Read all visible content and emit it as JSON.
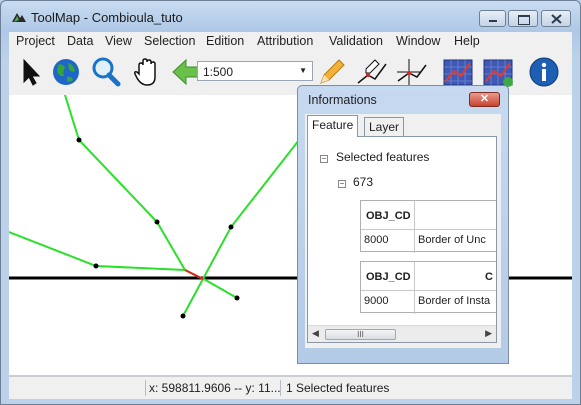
{
  "window": {
    "title": "ToolMap - Combioula_tuto",
    "controls": {
      "minimize": "–",
      "maximize": "□",
      "close": "✕"
    }
  },
  "menubar": [
    "Project",
    "Data",
    "View",
    "Selection",
    "Edition",
    "Attribution",
    "Validation",
    "Window",
    "Help"
  ],
  "toolbar": {
    "tools": [
      "select-arrow",
      "globe",
      "zoom-magnifier",
      "pan-hand",
      "back-arrow",
      "edit-pencil",
      "draw-vertex",
      "modify-vertex",
      "attribution-chart",
      "add-chart",
      "information"
    ],
    "scale": "1:500"
  },
  "status": {
    "empty": "",
    "coords": "x: 598811.9606 -- y: 11...",
    "selection": "1 Selected features"
  },
  "info_panel": {
    "title": "Informations",
    "close": "✕",
    "tabs": [
      "Feature",
      "Layer"
    ],
    "tree": {
      "root": "Selected features",
      "root_toggle": "−",
      "child": "673",
      "child_toggle": "−"
    },
    "tables": [
      {
        "header": [
          "OBJ_CD",
          ""
        ],
        "row": [
          "8000",
          "Border of Unc"
        ]
      },
      {
        "header": [
          "OBJ_CD",
          "C"
        ],
        "row": [
          "9000",
          "Border of Insta"
        ]
      }
    ],
    "scroll_thumb": "III"
  }
}
